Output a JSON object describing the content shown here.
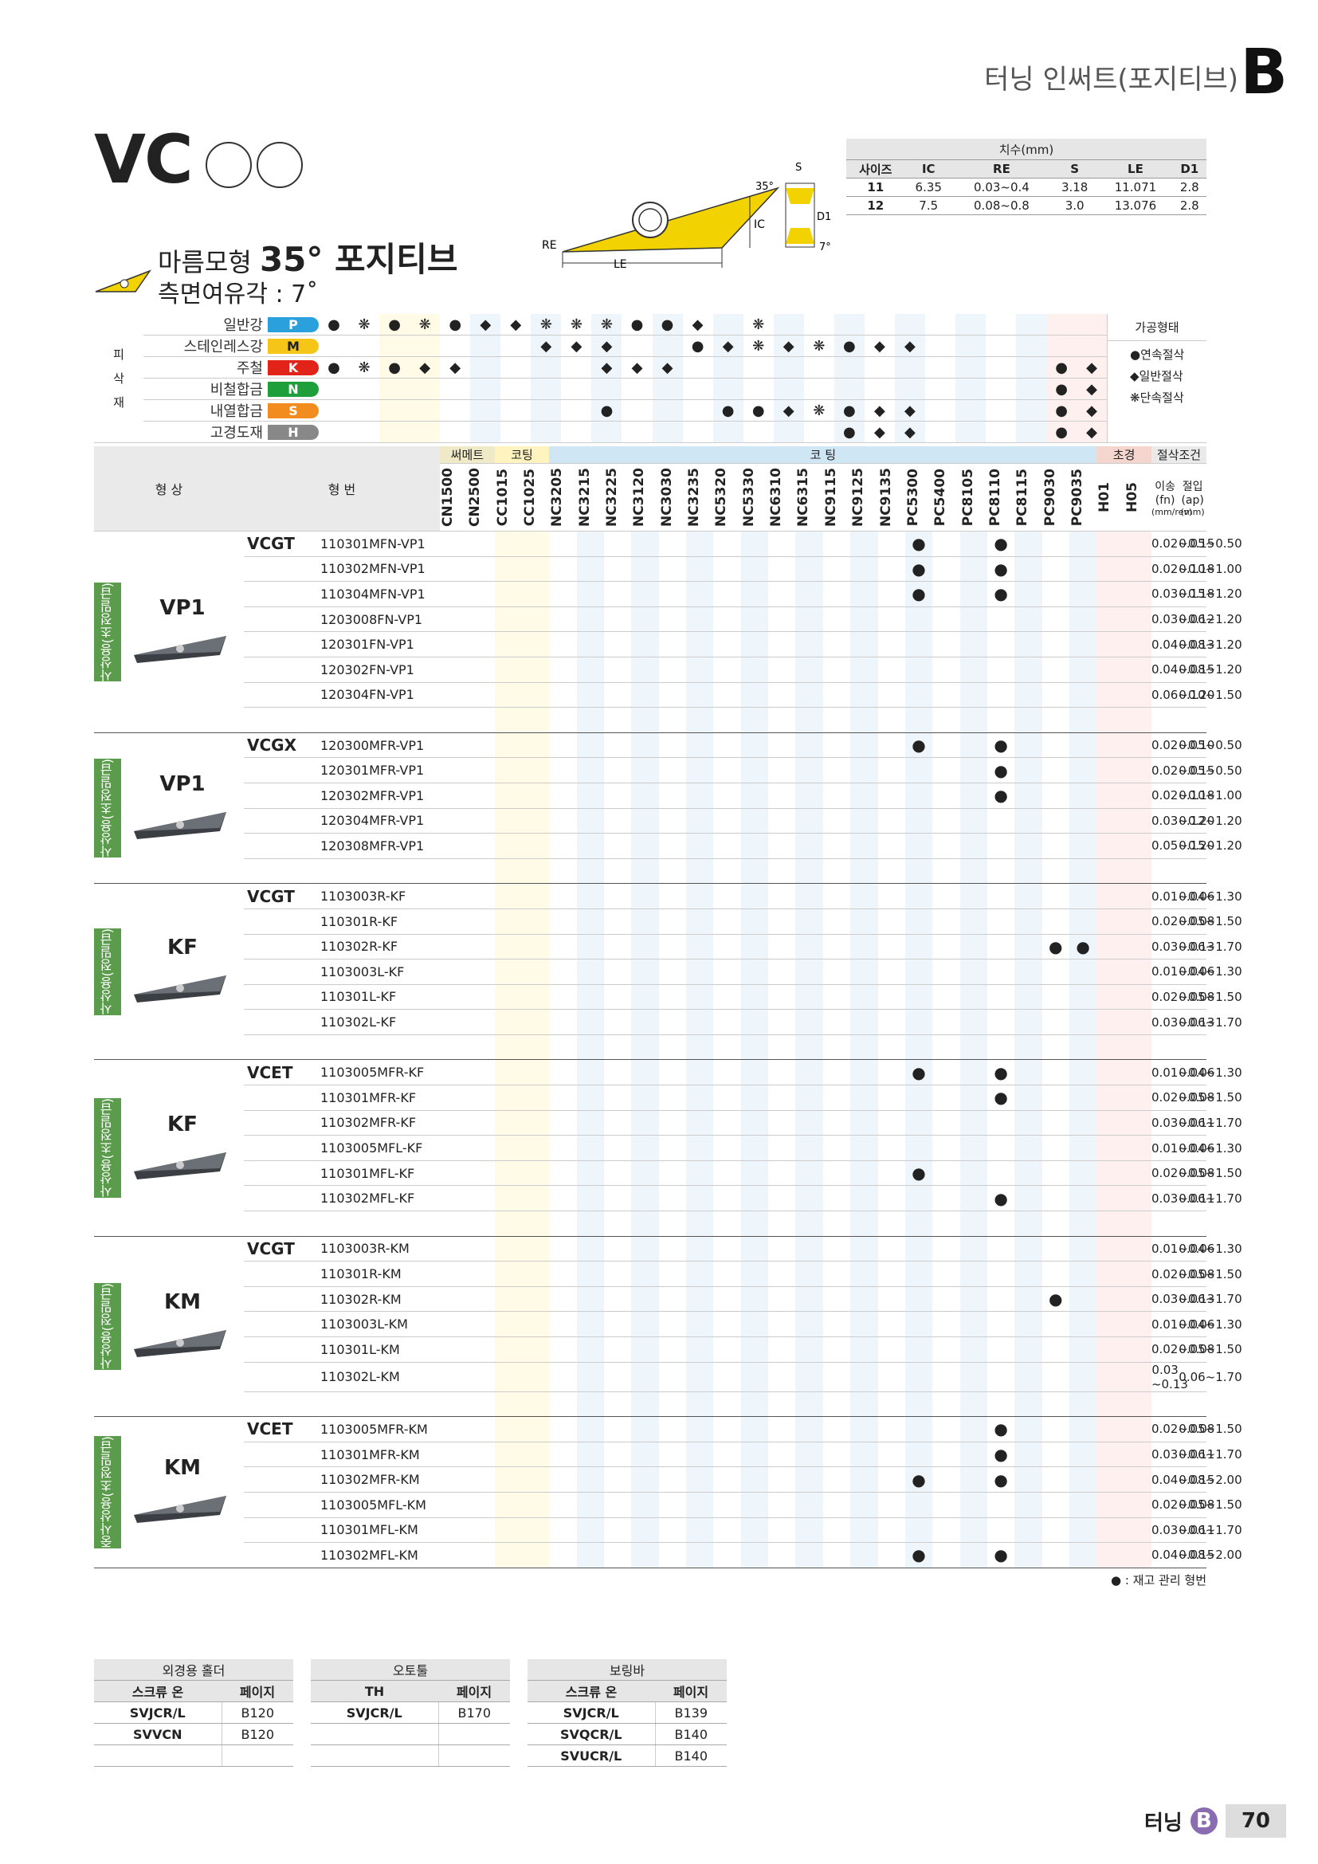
{
  "header": {
    "title": "터닝 인써트(포지티브)",
    "letter": "B"
  },
  "product": {
    "code": "VC",
    "shape_name": "마름모형",
    "angle": "35° 포지티브",
    "relief": "측면여유각 : 7˚"
  },
  "diagram": {
    "labels": {
      "s": "S",
      "angle35": "35°",
      "ic": "IC",
      "d1": "D1",
      "re": "RE",
      "le": "LE",
      "angle7": "7°"
    }
  },
  "dim_table": {
    "title": "치수(mm)",
    "headers": [
      "사이즈",
      "IC",
      "RE",
      "S",
      "LE",
      "D1"
    ],
    "rows": [
      [
        "11",
        "6.35",
        "0.03~0.4",
        "3.18",
        "11.071",
        "2.8"
      ],
      [
        "12",
        "7.5",
        "0.08~0.8",
        "3.0",
        "13.076",
        "2.8"
      ]
    ]
  },
  "materials": {
    "side_label": [
      "피",
      "삭",
      "재"
    ],
    "rows": [
      {
        "label": "일반강",
        "code": "P",
        "color": "#2aa0dc"
      },
      {
        "label": "스테인레스강",
        "code": "M",
        "color": "#f5c518"
      },
      {
        "label": "주철",
        "code": "K",
        "color": "#e2231a"
      },
      {
        "label": "비철합금",
        "code": "N",
        "color": "#1f9e3c"
      },
      {
        "label": "내열합금",
        "code": "S",
        "color": "#f28c1f"
      },
      {
        "label": "고경도재",
        "code": "H",
        "color": "#888888"
      }
    ],
    "legend_title": "가공형태",
    "legend": [
      "●연속절삭",
      "◆일반절삭",
      "❋단속절삭"
    ]
  },
  "main": {
    "col_groups": {
      "shape": "형 상",
      "type": "형 번",
      "cermet": "써메트",
      "coating1": "코팅",
      "coating2": "코 팅",
      "cbn": "초경",
      "cond": "절삭조건"
    },
    "grades": [
      "CN1500",
      "CN2500",
      "CC1015",
      "CC1025",
      "NC3205",
      "NC3215",
      "NC3225",
      "NC3120",
      "NC3030",
      "NC3235",
      "NC5320",
      "NC5330",
      "NC6310",
      "NC6315",
      "NC9115",
      "NC9125",
      "NC9135",
      "PC5300",
      "PC5400",
      "PC8105",
      "PC8110",
      "PC8115",
      "PC9030",
      "PC9035",
      "H01",
      "H05"
    ],
    "cond_headers": {
      "feed": "이송(fn)",
      "feed_unit": "(mm/rev)",
      "doc": "절입(ap)",
      "doc_unit": "(mm)"
    },
    "sections": [
      {
        "side": "사상용(초정밀급)",
        "shape": "VP1",
        "series": "VCGT",
        "rows": [
          {
            "code": "110301MFN-VP1",
            "dots": [
              17,
              20
            ],
            "fn": "0.02~0.15",
            "ap": "0.05~0.50"
          },
          {
            "code": "110302MFN-VP1",
            "dots": [
              17,
              20
            ],
            "fn": "0.02~0.18",
            "ap": "0.10~1.00"
          },
          {
            "code": "110304MFN-VP1",
            "dots": [
              17,
              20
            ],
            "fn": "0.03~0.18",
            "ap": "0.15~1.20"
          },
          {
            "code": "1203008FN-VP1",
            "dots": [],
            "fn": "0.03~0.12",
            "ap": "0.06~1.20"
          },
          {
            "code": "120301FN-VP1",
            "dots": [],
            "fn": "0.04~0.13",
            "ap": "0.08~1.20"
          },
          {
            "code": "120302FN-VP1",
            "dots": [],
            "fn": "0.04~0.15",
            "ap": "0.08~1.20"
          },
          {
            "code": "120304FN-VP1",
            "dots": [],
            "fn": "0.06~0.20",
            "ap": "0.10~1.50"
          },
          {
            "code": "",
            "dots": [],
            "fn": "",
            "ap": ""
          }
        ]
      },
      {
        "side": "사상용(초정밀급)",
        "shape": "VP1",
        "series": "VCGX",
        "rows": [
          {
            "code": "120300MFR-VP1",
            "dots": [
              17,
              20
            ],
            "fn": "0.02~0.10",
            "ap": "0.05~0.50"
          },
          {
            "code": "120301MFR-VP1",
            "dots": [
              20
            ],
            "fn": "0.02~0.15",
            "ap": "0.05~0.50"
          },
          {
            "code": "120302MFR-VP1",
            "dots": [
              20
            ],
            "fn": "0.02~0.18",
            "ap": "0.10~1.00"
          },
          {
            "code": "120304MFR-VP1",
            "dots": [],
            "fn": "0.03~0.20",
            "ap": "0.12~1.20"
          },
          {
            "code": "120308MFR-VP1",
            "dots": [],
            "fn": "0.05~0.20",
            "ap": "0.15~1.20"
          },
          {
            "code": "",
            "dots": [],
            "fn": "",
            "ap": ""
          }
        ]
      },
      {
        "side": "사상용(정밀급)",
        "shape": "KF",
        "series": "VCGT",
        "rows": [
          {
            "code": "1103003R-KF",
            "dots": [],
            "fn": "0.01~0.06",
            "ap": "0.04~1.30"
          },
          {
            "code": "110301R-KF",
            "dots": [],
            "fn": "0.02~0.08",
            "ap": "0.05~1.50"
          },
          {
            "code": "110302R-KF",
            "dots": [
              22,
              23
            ],
            "fn": "0.03~0.13",
            "ap": "0.06~1.70"
          },
          {
            "code": "1103003L-KF",
            "dots": [],
            "fn": "0.01~0.06",
            "ap": "0.04~1.30"
          },
          {
            "code": "110301L-KF",
            "dots": [],
            "fn": "0.02~0.08",
            "ap": "0.05~1.50"
          },
          {
            "code": "110302L-KF",
            "dots": [],
            "fn": "0.03~0.13",
            "ap": "0.06~1.70"
          },
          {
            "code": "",
            "dots": [],
            "fn": "",
            "ap": ""
          }
        ]
      },
      {
        "side": "사상용(초정밀급)",
        "shape": "KF",
        "series": "VCET",
        "rows": [
          {
            "code": "1103005MFR-KF",
            "dots": [
              17,
              20
            ],
            "fn": "0.01~0.06",
            "ap": "0.04~1.30"
          },
          {
            "code": "110301MFR-KF",
            "dots": [
              20
            ],
            "fn": "0.02~0.08",
            "ap": "0.05~1.50"
          },
          {
            "code": "110302MFR-KF",
            "dots": [],
            "fn": "0.03~0.11",
            "ap": "0.06~1.70"
          },
          {
            "code": "1103005MFL-KF",
            "dots": [],
            "fn": "0.01~0.06",
            "ap": "0.04~1.30"
          },
          {
            "code": "110301MFL-KF",
            "dots": [
              17
            ],
            "fn": "0.02~0.08",
            "ap": "0.05~1.50"
          },
          {
            "code": "110302MFL-KF",
            "dots": [
              20
            ],
            "fn": "0.03~0.11",
            "ap": "0.06~1.70"
          },
          {
            "code": "",
            "dots": [],
            "fn": "",
            "ap": ""
          }
        ]
      },
      {
        "side": "사상용(정밀급)",
        "shape": "KM",
        "series": "VCGT",
        "rows": [
          {
            "code": "1103003R-KM",
            "dots": [],
            "fn": "0.01~0.06",
            "ap": "0.04~1.30"
          },
          {
            "code": "110301R-KM",
            "dots": [],
            "fn": "0.02~0.08",
            "ap": "0.05~1.50"
          },
          {
            "code": "110302R-KM",
            "dots": [
              22
            ],
            "fn": "0.03~0.13",
            "ap": "0.06~1.70"
          },
          {
            "code": "1103003L-KM",
            "dots": [],
            "fn": "0.01~0.06",
            "ap": "0.04~1.30"
          },
          {
            "code": "110301L-KM",
            "dots": [],
            "fn": "0.02~0.08",
            "ap": "0.05~1.50"
          },
          {
            "code": "110302L-KM",
            "dots": [],
            "fn": "0.03 ~0.13",
            "ap": "0.06~1.70"
          },
          {
            "code": "",
            "dots": [],
            "fn": "",
            "ap": ""
          }
        ]
      },
      {
        "side": "중사상용(초정밀급)",
        "shape": "KM",
        "series": "VCET",
        "rows": [
          {
            "code": "1103005MFR-KM",
            "dots": [
              20
            ],
            "fn": "0.02~0.08",
            "ap": "0.05~1.50"
          },
          {
            "code": "110301MFR-KM",
            "dots": [
              20
            ],
            "fn": "0.03~0.11",
            "ap": "0.06~1.70"
          },
          {
            "code": "110302MFR-KM",
            "dots": [
              17,
              20
            ],
            "fn": "0.04~0.15",
            "ap": "0.08~2.00"
          },
          {
            "code": "1103005MFL-KM",
            "dots": [],
            "fn": "0.02~0.08",
            "ap": "0.05~1.50"
          },
          {
            "code": "110301MFL-KM",
            "dots": [],
            "fn": "0.03~0.11",
            "ap": "0.06~1.70"
          },
          {
            "code": "110302MFL-KM",
            "dots": [
              17,
              20
            ],
            "fn": "0.04~0.15",
            "ap": "0.08~2.00"
          }
        ]
      }
    ],
    "note": "● : 재고 관리 형번"
  },
  "refs": [
    {
      "title": "외경용 홀더",
      "h1": "스크류 온",
      "h2": "페이지",
      "rows": [
        [
          "SVJCR/L",
          "B120"
        ],
        [
          "SVVCN",
          "B120"
        ],
        [
          "",
          ""
        ]
      ]
    },
    {
      "title": "오토툴",
      "h1": "TH",
      "h2": "페이지",
      "rows": [
        [
          "SVJCR/L",
          "B170"
        ],
        [
          "",
          ""
        ],
        [
          "",
          ""
        ]
      ]
    },
    {
      "title": "보링바",
      "h1": "스크류 온",
      "h2": "페이지",
      "rows": [
        [
          "SVJCR/L",
          "B139"
        ],
        [
          "SVQCR/L",
          "B140"
        ],
        [
          "SVUCR/L",
          "B140"
        ]
      ]
    }
  ],
  "footer": {
    "label": "터닝",
    "badge": "B",
    "page": "70"
  }
}
